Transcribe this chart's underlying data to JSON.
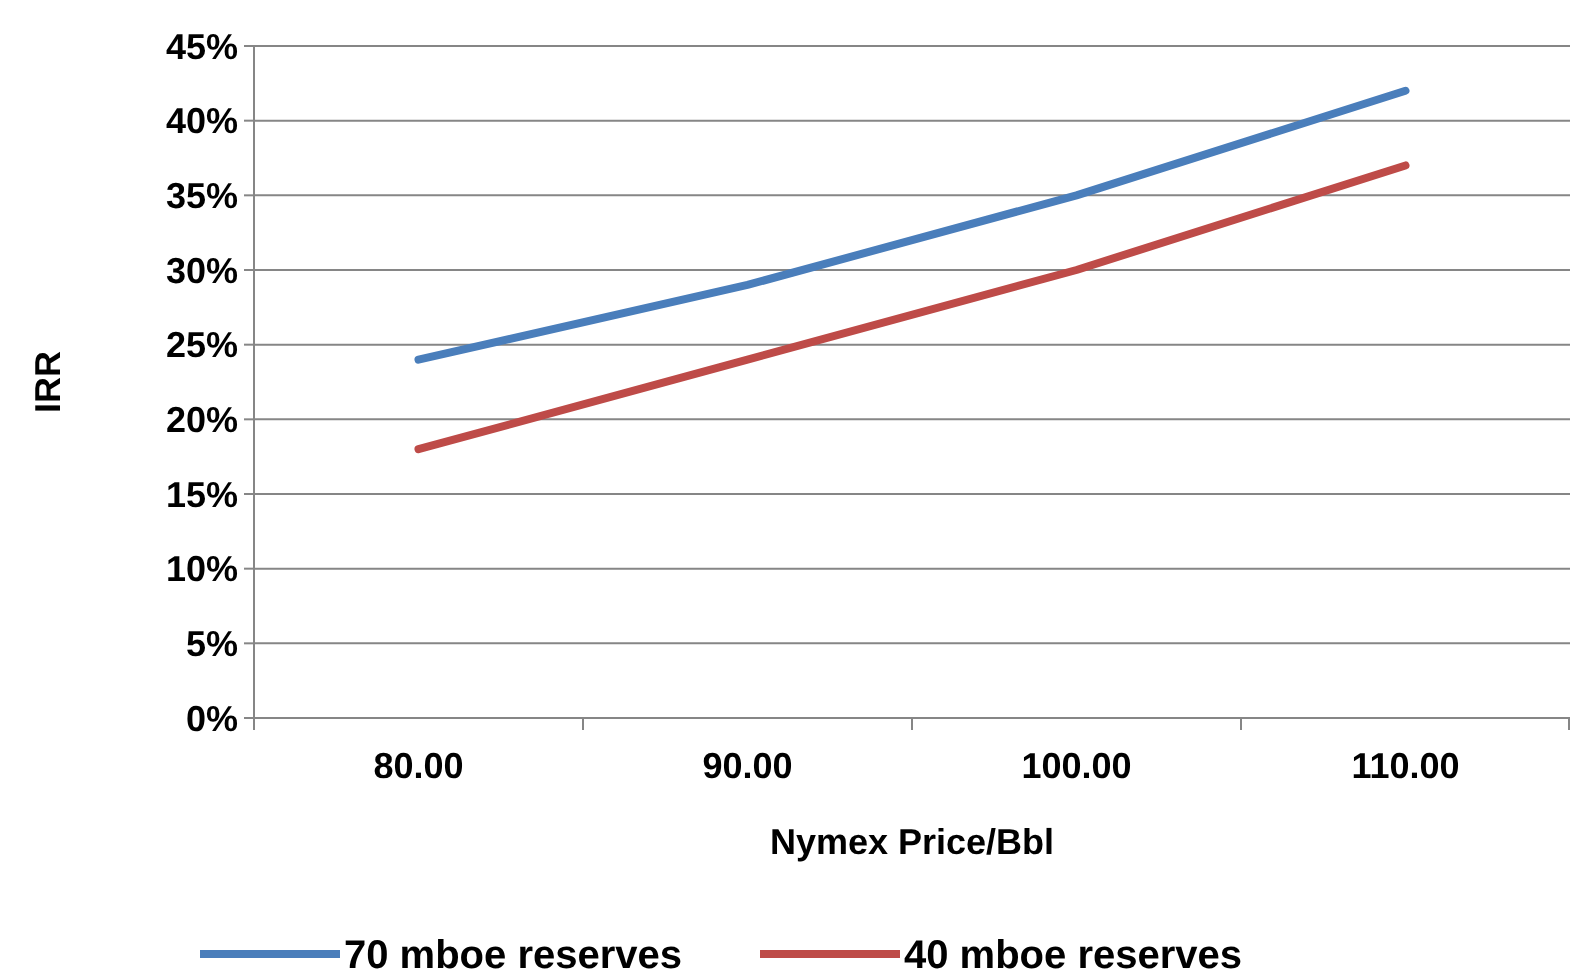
{
  "chart_data": {
    "type": "line",
    "xlabel": "Nymex Price/Bbl",
    "ylabel": "IRR",
    "categories": [
      "80.00",
      "90.00",
      "100.00",
      "110.00"
    ],
    "series": [
      {
        "name": "70 mboe reserves",
        "color": "#4a7ebb",
        "values": [
          24,
          29,
          35,
          42
        ]
      },
      {
        "name": "40 mboe reserves",
        "color": "#be4b48",
        "values": [
          18,
          24,
          30,
          37
        ]
      }
    ],
    "ylim": [
      0,
      45
    ],
    "yticks": [
      {
        "value": 0,
        "label": "0%"
      },
      {
        "value": 5,
        "label": "5%"
      },
      {
        "value": 10,
        "label": "10%"
      },
      {
        "value": 15,
        "label": "15%"
      },
      {
        "value": 20,
        "label": "20%"
      },
      {
        "value": 25,
        "label": "25%"
      },
      {
        "value": 30,
        "label": "30%"
      },
      {
        "value": 35,
        "label": "35%"
      },
      {
        "value": 40,
        "label": "40%"
      },
      {
        "value": 45,
        "label": "45%"
      }
    ],
    "grid": "y",
    "legend": "bottom",
    "marker": "none",
    "line_style": "solid"
  }
}
